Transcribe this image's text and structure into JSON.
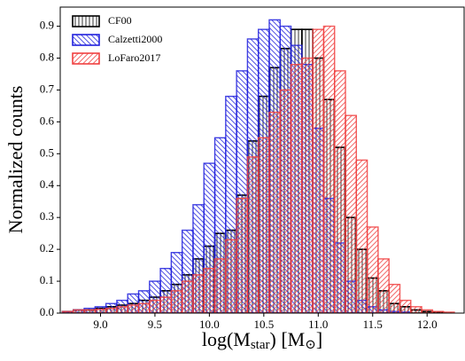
{
  "chart_data": {
    "type": "histogram",
    "xlabel": [
      "log(M",
      "star",
      ") [M",
      "⊙",
      "]"
    ],
    "ylabel": "Normalized counts",
    "bins": [
      8.65,
      8.75,
      8.85,
      8.95,
      9.05,
      9.15,
      9.25,
      9.35,
      9.45,
      9.55,
      9.65,
      9.75,
      9.85,
      9.95,
      10.05,
      10.15,
      10.25,
      10.35,
      10.45,
      10.55,
      10.65,
      10.75,
      10.85,
      10.95,
      11.05,
      11.15,
      11.25,
      11.35,
      11.45,
      11.55,
      11.65,
      11.75,
      11.85,
      11.95,
      12.05,
      12.15,
      12.25,
      12.35
    ],
    "series": [
      {
        "name": "CF00",
        "color": "#000000",
        "hatch": "||",
        "values": [
          0.005,
          0.01,
          0.01,
          0.015,
          0.02,
          0.025,
          0.03,
          0.04,
          0.05,
          0.07,
          0.09,
          0.12,
          0.17,
          0.21,
          0.25,
          0.26,
          0.37,
          0.54,
          0.68,
          0.77,
          0.83,
          0.89,
          0.89,
          0.8,
          0.67,
          0.52,
          0.3,
          0.2,
          0.11,
          0.07,
          0.03,
          0.02,
          0.01,
          0.005,
          0.003,
          0,
          0
        ]
      },
      {
        "name": "Calzetti2000",
        "color": "#2222dd",
        "hatch": "\\\\",
        "values": [
          0.005,
          0.01,
          0.015,
          0.02,
          0.03,
          0.04,
          0.06,
          0.07,
          0.1,
          0.14,
          0.19,
          0.26,
          0.34,
          0.47,
          0.55,
          0.68,
          0.76,
          0.86,
          0.89,
          0.92,
          0.9,
          0.84,
          0.78,
          0.58,
          0.36,
          0.22,
          0.1,
          0.04,
          0.02,
          0.01,
          0.005,
          0.003,
          0,
          0,
          0,
          0,
          0
        ]
      },
      {
        "name": "LoFaro2017",
        "color": "#f04040",
        "hatch": "//",
        "values": [
          0.005,
          0.01,
          0.01,
          0.012,
          0.015,
          0.02,
          0.025,
          0.03,
          0.04,
          0.05,
          0.07,
          0.1,
          0.12,
          0.14,
          0.17,
          0.23,
          0.36,
          0.49,
          0.55,
          0.63,
          0.7,
          0.78,
          0.8,
          0.89,
          0.9,
          0.76,
          0.62,
          0.48,
          0.27,
          0.17,
          0.09,
          0.04,
          0.02,
          0.01,
          0.005,
          0.003,
          0
        ]
      }
    ],
    "xlim": [
      8.63,
      12.34
    ],
    "ylim": [
      0,
      0.96
    ],
    "xticks": [
      {
        "value": 9,
        "label": "9.0"
      },
      9.5,
      {
        "value": 10,
        "label": "10.0"
      },
      10.5,
      {
        "value": 11,
        "label": "11.0"
      },
      11.5,
      {
        "value": 12,
        "label": "12.0"
      }
    ],
    "yticks": [
      {
        "value": 0,
        "label": "0.0"
      },
      0.1,
      0.2,
      0.3,
      0.4,
      0.5,
      0.6,
      0.7,
      0.8,
      0.9
    ],
    "legend": "upper left"
  }
}
